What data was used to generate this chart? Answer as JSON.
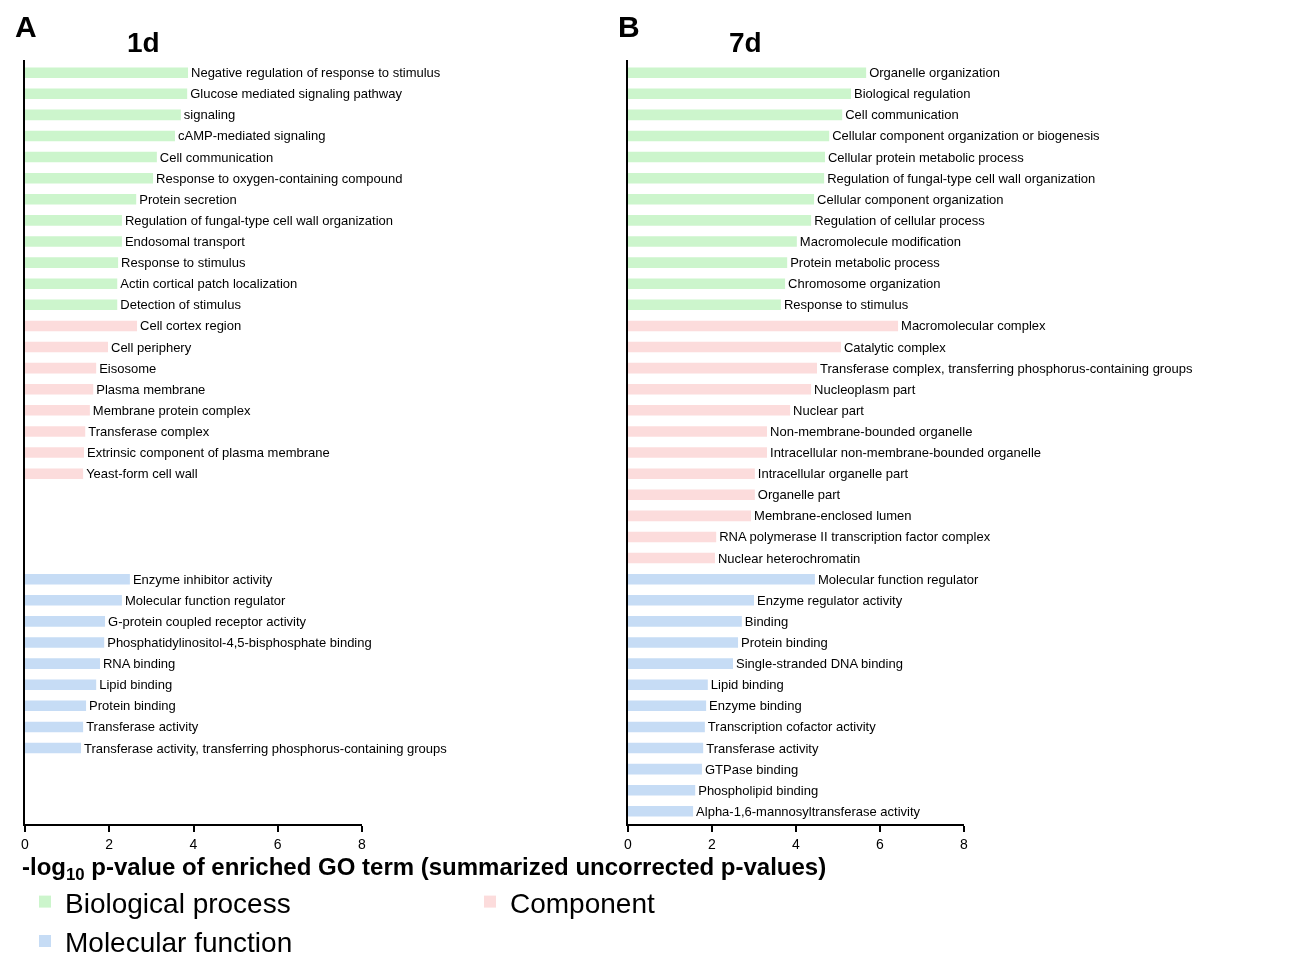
{
  "chart_data": [
    {
      "type": "bar",
      "orientation": "horizontal",
      "title": "1d",
      "annotations": [
        "A"
      ],
      "xlabel": "-log$_{10}$ p-value of enriched GO term (summarized uncorrected p-values)",
      "legend": "bottom",
      "xlim": [
        0,
        8
      ],
      "xticks": [
        0,
        2,
        4,
        6,
        8
      ],
      "categories": [
        "Negative regulation of response to stimulus",
        "Glucose mediated signaling pathway",
        "signaling",
        "cAMP-mediated signaling",
        "Cell communication",
        "Response to oxygen-containing compound",
        "Protein secretion",
        "Regulation of fungal-type cell wall organization",
        "Endosomal transport",
        "Response to stimulus",
        "Actin cortical patch localization",
        "Detection of stimulus",
        "Cell cortex region",
        "Cell periphery",
        "Eisosome",
        "Plasma membrane",
        "Membrane protein complex",
        "Transferase complex",
        "Extrinsic component of plasma membrane",
        "Yeast-form cell wall",
        null,
        null,
        null,
        null,
        "Enzyme inhibitor activity",
        "Molecular function regulator",
        "G-protein coupled receptor activity",
        "Phosphatidylinositol-4,5-bisphosphate binding",
        "RNA binding",
        "Lipid binding",
        "Protein binding",
        "Transferase activity",
        "Transferase activity, transferring phosphorus-containing groups"
      ],
      "series": [
        {
          "name": "Biological process",
          "color": "#ccf5cc",
          "values": [
            3.87,
            3.85,
            3.7,
            3.56,
            3.13,
            3.04,
            2.64,
            2.3,
            2.3,
            2.21,
            2.19,
            2.19,
            null,
            null,
            null,
            null,
            null,
            null,
            null,
            null,
            null,
            null,
            null,
            null,
            null,
            null,
            null,
            null,
            null,
            null,
            null,
            null,
            null
          ]
        },
        {
          "name": "Component",
          "color": "#fcdcdc",
          "values": [
            null,
            null,
            null,
            null,
            null,
            null,
            null,
            null,
            null,
            null,
            null,
            null,
            2.66,
            1.97,
            1.69,
            1.62,
            1.54,
            1.43,
            1.4,
            1.38,
            null,
            null,
            null,
            null,
            null,
            null,
            null,
            null,
            null,
            null,
            null,
            null,
            null
          ]
        },
        {
          "name": "Molecular function",
          "color": "#c6dcf5",
          "values": [
            null,
            null,
            null,
            null,
            null,
            null,
            null,
            null,
            null,
            null,
            null,
            null,
            null,
            null,
            null,
            null,
            null,
            null,
            null,
            null,
            null,
            null,
            null,
            null,
            2.49,
            2.3,
            1.9,
            1.88,
            1.78,
            1.69,
            1.45,
            1.38,
            1.33
          ]
        }
      ]
    },
    {
      "type": "bar",
      "orientation": "horizontal",
      "title": "7d",
      "annotations": [
        "B"
      ],
      "xlim": [
        0,
        8
      ],
      "xticks": [
        0,
        2,
        4,
        6,
        8
      ],
      "categories": [
        "Organelle organization",
        "Biological regulation",
        "Cell communication",
        "Cellular component organization or biogenesis",
        "Cellular protein metabolic process",
        "Regulation of fungal-type cell wall organization",
        "Cellular component organization",
        "Regulation of cellular process",
        "Macromolecule modification",
        "Protein metabolic process",
        "Chromosome organization",
        "Response to stimulus",
        "Macromolecular complex",
        "Catalytic complex",
        "Transferase complex, transferring phosphorus-containing groups",
        "Nucleoplasm part",
        "Nuclear part",
        "Non-membrane-bounded organelle",
        "Intracellular non-membrane-bounded organelle",
        "Intracellular organelle part",
        "Organelle part",
        "Membrane-enclosed lumen",
        "RNA polymerase II transcription factor complex",
        "Nuclear heterochromatin",
        "Molecular function regulator",
        "Enzyme regulator activity",
        "Binding",
        "Protein binding",
        "Single-stranded DNA binding",
        "Lipid binding",
        "Enzyme binding",
        "Transcription cofactor activity",
        "Transferase activity",
        "GTPase binding",
        "Phospholipid binding",
        "Alpha-1,6-mannosyltransferase activity"
      ],
      "series": [
        {
          "color": "#ccf5cc",
          "values": [
            5.67,
            5.31,
            5.1,
            4.79,
            4.69,
            4.67,
            4.43,
            4.36,
            4.02,
            3.79,
            3.74,
            3.64,
            null,
            null,
            null,
            null,
            null,
            null,
            null,
            null,
            null,
            null,
            null,
            null,
            null,
            null,
            null,
            null,
            null,
            null,
            null,
            null,
            null,
            null,
            null,
            null
          ]
        },
        {
          "color": "#fcdcdc",
          "values": [
            null,
            null,
            null,
            null,
            null,
            null,
            null,
            null,
            null,
            null,
            null,
            null,
            6.43,
            5.07,
            4.5,
            4.36,
            3.86,
            3.31,
            3.31,
            3.02,
            3.02,
            2.93,
            2.1,
            2.07,
            null,
            null,
            null,
            null,
            null,
            null,
            null,
            null,
            null,
            null,
            null,
            null
          ]
        },
        {
          "color": "#c6dcf5",
          "values": [
            null,
            null,
            null,
            null,
            null,
            null,
            null,
            null,
            null,
            null,
            null,
            null,
            null,
            null,
            null,
            null,
            null,
            null,
            null,
            null,
            null,
            null,
            null,
            null,
            4.45,
            3.0,
            2.71,
            2.62,
            2.5,
            1.9,
            1.86,
            1.83,
            1.79,
            1.76,
            1.6,
            1.55
          ]
        }
      ]
    }
  ]
}
